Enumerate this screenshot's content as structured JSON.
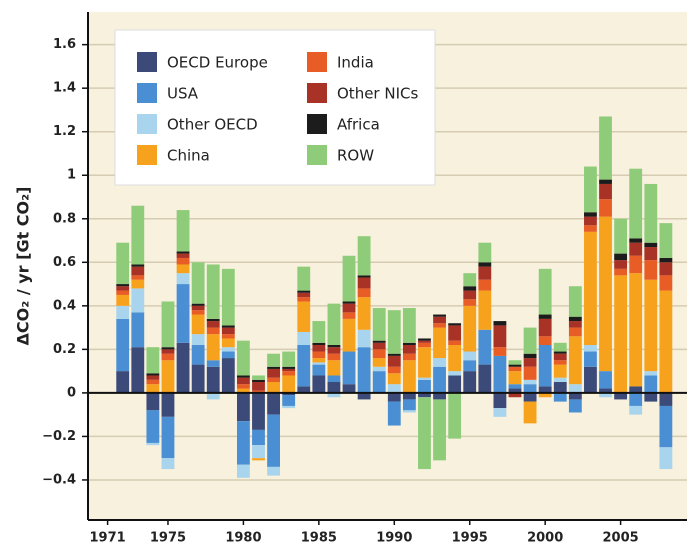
{
  "chart_data": {
    "type": "stacked-bar",
    "y_label": "ΔCO₂ / yr [Gt CO₂]",
    "x": [
      1972,
      1973,
      1974,
      1975,
      1976,
      1977,
      1978,
      1979,
      1980,
      1981,
      1982,
      1983,
      1984,
      1985,
      1986,
      1987,
      1988,
      1989,
      1990,
      1991,
      1992,
      1993,
      1994,
      1995,
      1996,
      1997,
      1998,
      1999,
      2000,
      2001,
      2002,
      2003,
      2004,
      2005,
      2006,
      2007,
      2008
    ],
    "xlim": [
      1969.7,
      2009.4
    ],
    "xticks": [
      1971,
      1975,
      1980,
      1985,
      1990,
      1995,
      2000,
      2005
    ],
    "ylim": [
      -0.584,
      1.75
    ],
    "yticks": [
      {
        "value": -0.4,
        "label": "−0.4"
      },
      {
        "value": -0.2,
        "label": "−0.2"
      },
      0,
      0.2,
      0.4,
      0.6,
      0.8,
      1,
      1.2,
      1.4,
      1.6
    ],
    "grid": true,
    "legend": "upper left",
    "series": [
      {
        "name": "OECD Europe",
        "color": "#3b4a78",
        "values": [
          0.1,
          0.21,
          -0.08,
          -0.11,
          0.23,
          0.13,
          0.12,
          0.16,
          -0.13,
          -0.17,
          -0.1,
          -0.01,
          0.03,
          0.08,
          0.05,
          0.04,
          -0.03,
          0.0,
          -0.04,
          -0.03,
          -0.02,
          -0.03,
          0.08,
          0.1,
          0.13,
          -0.07,
          0.02,
          -0.04,
          0.03,
          0.05,
          -0.03,
          0.12,
          0.02,
          -0.03,
          0.03,
          -0.04,
          -0.06
        ]
      },
      {
        "name": "USA",
        "color": "#4a8fd4",
        "values": [
          0.24,
          0.16,
          -0.15,
          -0.19,
          0.27,
          0.09,
          0.03,
          0.03,
          -0.2,
          -0.07,
          -0.24,
          -0.05,
          0.19,
          0.05,
          0.03,
          0.15,
          0.21,
          0.1,
          -0.11,
          -0.05,
          0.06,
          0.12,
          0.0,
          0.05,
          0.16,
          0.17,
          0.02,
          0.04,
          0.19,
          -0.04,
          -0.06,
          0.07,
          0.08,
          0.0,
          -0.06,
          0.08,
          -0.19
        ]
      },
      {
        "name": "Other OECD",
        "color": "#a9d4ee",
        "values": [
          0.06,
          0.11,
          -0.01,
          -0.05,
          0.05,
          0.05,
          -0.03,
          0.02,
          -0.06,
          -0.06,
          -0.04,
          -0.01,
          0.06,
          0.01,
          -0.02,
          0.0,
          0.08,
          0.02,
          0.04,
          -0.01,
          0.01,
          0.04,
          0.02,
          0.04,
          0.0,
          -0.04,
          0.0,
          0.02,
          0.0,
          0.02,
          0.04,
          0.03,
          -0.02,
          0.0,
          -0.04,
          0.02,
          -0.1
        ]
      },
      {
        "name": "China",
        "color": "#f7a21d",
        "values": [
          0.05,
          0.04,
          0.04,
          0.15,
          0.04,
          0.09,
          0.12,
          0.04,
          0.02,
          -0.01,
          0.05,
          0.08,
          0.14,
          0.02,
          0.07,
          0.15,
          0.15,
          0.04,
          0.05,
          0.15,
          0.14,
          0.14,
          0.12,
          0.21,
          0.18,
          0.0,
          0.06,
          -0.1,
          -0.02,
          0.06,
          0.22,
          0.52,
          0.71,
          0.54,
          0.52,
          0.42,
          0.47
        ]
      },
      {
        "name": "India",
        "color": "#e85d25",
        "values": [
          0.02,
          0.02,
          0.02,
          0.03,
          0.03,
          0.02,
          0.03,
          0.02,
          0.02,
          0.01,
          0.02,
          0.02,
          0.02,
          0.03,
          0.03,
          0.03,
          0.04,
          0.04,
          0.03,
          0.03,
          0.02,
          0.02,
          0.02,
          0.03,
          0.05,
          0.04,
          0.02,
          0.06,
          0.04,
          0.02,
          0.04,
          0.03,
          0.08,
          0.03,
          0.08,
          0.09,
          0.07
        ]
      },
      {
        "name": "Other NICs",
        "color": "#a93226",
        "values": [
          0.02,
          0.04,
          0.02,
          0.02,
          0.02,
          0.02,
          0.03,
          0.03,
          0.03,
          0.04,
          0.04,
          0.01,
          0.02,
          0.03,
          0.03,
          0.04,
          0.05,
          0.03,
          0.05,
          0.04,
          0.01,
          0.03,
          0.07,
          0.04,
          0.06,
          0.1,
          -0.02,
          0.04,
          0.08,
          0.03,
          0.03,
          0.04,
          0.07,
          0.04,
          0.06,
          0.06,
          0.06
        ]
      },
      {
        "name": "Africa",
        "color": "#1c1c1c",
        "values": [
          0.01,
          0.01,
          0.01,
          0.01,
          0.01,
          0.01,
          0.01,
          0.01,
          0.01,
          0.01,
          0.01,
          0.01,
          0.01,
          0.01,
          0.01,
          0.01,
          0.01,
          0.01,
          0.01,
          0.01,
          0.01,
          0.01,
          0.01,
          0.02,
          0.02,
          0.02,
          0.01,
          0.02,
          0.02,
          0.01,
          0.02,
          0.02,
          0.02,
          0.03,
          0.02,
          0.02,
          0.02
        ]
      },
      {
        "name": "ROW",
        "color": "#8fcc7a",
        "values": [
          0.19,
          0.27,
          0.12,
          0.21,
          0.19,
          0.19,
          0.25,
          0.26,
          0.16,
          0.02,
          0.06,
          0.07,
          0.11,
          0.1,
          0.19,
          0.21,
          0.18,
          0.15,
          0.2,
          0.16,
          -0.33,
          -0.28,
          -0.21,
          0.06,
          0.09,
          0.0,
          0.02,
          0.12,
          0.21,
          0.04,
          0.14,
          0.21,
          0.29,
          0.16,
          0.32,
          0.27,
          0.16
        ]
      }
    ]
  }
}
